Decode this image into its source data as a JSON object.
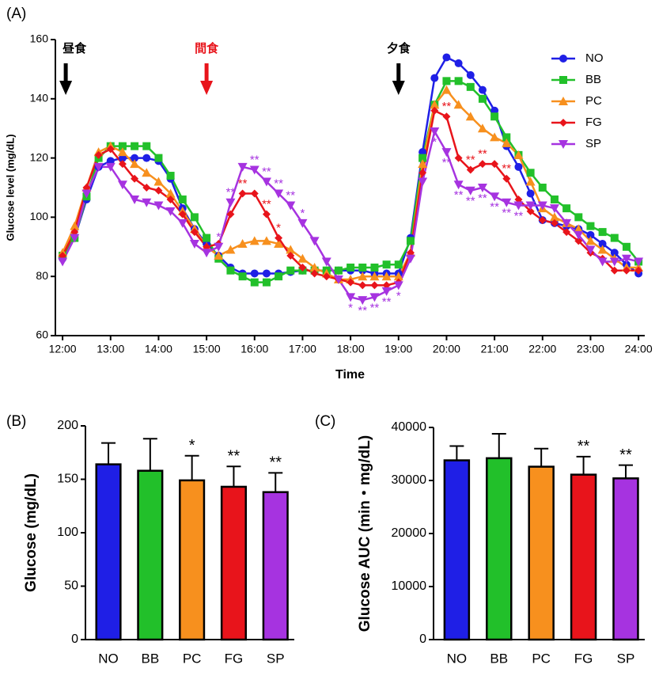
{
  "chart_data": [
    {
      "type": "line",
      "panel_label": "(A)",
      "x_label": "Time",
      "y_label": "Glucose level (mg/dL)",
      "x": [
        12,
        12.25,
        12.5,
        12.75,
        13,
        13.25,
        13.5,
        13.75,
        14,
        14.25,
        14.5,
        14.75,
        15,
        15.25,
        15.5,
        15.75,
        16,
        16.25,
        16.5,
        16.75,
        17,
        17.25,
        17.5,
        17.75,
        18,
        18.25,
        18.5,
        18.75,
        19,
        19.25,
        19.5,
        19.75,
        20,
        20.25,
        20.5,
        20.75,
        21,
        21.25,
        21.5,
        21.75,
        22,
        22.25,
        22.5,
        22.75,
        23,
        23.25,
        23.5,
        23.75,
        24
      ],
      "xlim": [
        11.85,
        24.13
      ],
      "xticks": [
        {
          "value": 12,
          "label": "12:00"
        },
        {
          "value": 13,
          "label": "13:00"
        },
        {
          "value": 14,
          "label": "14:00"
        },
        {
          "value": 15,
          "label": "15:00"
        },
        {
          "value": 16,
          "label": "16:00"
        },
        {
          "value": 17,
          "label": "17:00"
        },
        {
          "value": 18,
          "label": "18:00"
        },
        {
          "value": 19,
          "label": "19:00"
        },
        {
          "value": 20,
          "label": "20:00"
        },
        {
          "value": 21,
          "label": "21:00"
        },
        {
          "value": 22,
          "label": "22:00"
        },
        {
          "value": 23,
          "label": "23:00"
        },
        {
          "value": 24,
          "label": "24:00"
        }
      ],
      "ylim": [
        60,
        160
      ],
      "yticks": [
        60,
        80,
        100,
        120,
        140,
        160
      ],
      "series": [
        {
          "name": "NO",
          "color": "#1f1fe6",
          "marker": "circle",
          "values": [
            86,
            93,
            106,
            117,
            119,
            120,
            120,
            120,
            119,
            113,
            103,
            96,
            91,
            87,
            83,
            81,
            81,
            81,
            81,
            81.5,
            82,
            82,
            82,
            82,
            82,
            82,
            81,
            81,
            81,
            93,
            122,
            147,
            154,
            152,
            148,
            143,
            136,
            124,
            117,
            108,
            99,
            98,
            97,
            96,
            94,
            91,
            88,
            84,
            81
          ]
        },
        {
          "name": "BB",
          "color": "#22c02a",
          "marker": "square",
          "values": [
            87,
            93,
            107,
            120,
            124,
            124,
            124,
            124,
            120,
            114,
            106,
            100,
            93,
            86,
            82,
            80,
            78,
            78,
            80,
            82,
            82,
            82,
            82,
            82,
            83,
            83,
            83,
            84,
            84,
            92,
            120,
            138,
            146,
            146,
            144,
            140,
            134,
            127,
            121,
            115,
            110,
            106,
            103,
            100,
            97,
            95,
            93,
            90,
            85
          ]
        },
        {
          "name": "PC",
          "color": "#f7901e",
          "marker": "triangle",
          "values": [
            88,
            97,
            110,
            122,
            124,
            122,
            118,
            115,
            112,
            108,
            102,
            96,
            90,
            87,
            89,
            91,
            92,
            92,
            91,
            89,
            86,
            83,
            81,
            79,
            79,
            80,
            80,
            80,
            80,
            88,
            118,
            138,
            143,
            138,
            134,
            130,
            127,
            125,
            121,
            112,
            103,
            100,
            98,
            96,
            92,
            89,
            86,
            83,
            83
          ]
        },
        {
          "name": "FG",
          "color": "#e8141b",
          "marker": "diamond",
          "values": [
            87,
            95,
            110,
            121,
            123,
            118,
            113,
            110,
            109,
            106,
            101,
            95,
            90,
            91,
            101,
            108,
            108,
            101,
            93,
            87,
            83,
            81,
            80,
            79,
            78,
            77,
            77,
            77,
            78,
            88,
            115,
            136,
            134,
            120,
            116,
            118,
            118,
            113,
            106,
            102,
            99,
            98,
            95,
            92,
            88,
            86,
            82,
            82,
            82
          ]
        },
        {
          "name": "SP",
          "color": "#a633e0",
          "marker": "triangle-down",
          "values": [
            85,
            93,
            108,
            117,
            117,
            111,
            106,
            105,
            104,
            102,
            98,
            91,
            88,
            90,
            105,
            117,
            116,
            112,
            108,
            104,
            98,
            92,
            85,
            79,
            73,
            72,
            73,
            75,
            77,
            86,
            112,
            129,
            122,
            111,
            109,
            110,
            107,
            105,
            104,
            104,
            104,
            103,
            98,
            94,
            89,
            85,
            85,
            86,
            85
          ]
        }
      ],
      "legend": "top-right",
      "events": [
        {
          "time": 12,
          "label": "昼食",
          "color": "#000000"
        },
        {
          "time": 15,
          "label": "間食",
          "color": "#e8141b"
        },
        {
          "time": 19,
          "label": "夕食",
          "color": "#000000"
        }
      ],
      "annotations": [
        {
          "text": "*",
          "series": "SP",
          "x": 15.25,
          "place": "above"
        },
        {
          "text": "**",
          "series": "SP",
          "x": 15.5,
          "place": "above"
        },
        {
          "text": "**",
          "series": "SP",
          "x": 16,
          "place": "above"
        },
        {
          "text": "**",
          "series": "SP",
          "x": 16.25,
          "place": "above"
        },
        {
          "text": "**",
          "series": "SP",
          "x": 16.5,
          "place": "above"
        },
        {
          "text": "**",
          "series": "SP",
          "x": 16.75,
          "place": "above"
        },
        {
          "text": "*",
          "series": "SP",
          "x": 17,
          "place": "above"
        },
        {
          "text": "**",
          "series": "FG",
          "x": 15.75,
          "place": "above"
        },
        {
          "text": "**",
          "series": "FG",
          "x": 16.25,
          "place": "above"
        },
        {
          "text": "*",
          "series": "FG",
          "x": 16.5,
          "place": "above"
        },
        {
          "text": "*",
          "series": "SP",
          "x": 18,
          "place": "below"
        },
        {
          "text": "**",
          "series": "SP",
          "x": 18.25,
          "place": "below"
        },
        {
          "text": "**",
          "series": "SP",
          "x": 18.5,
          "place": "below"
        },
        {
          "text": "**",
          "series": "SP",
          "x": 18.75,
          "place": "below"
        },
        {
          "text": "*",
          "series": "SP",
          "x": 19,
          "place": "below"
        },
        {
          "text": "**",
          "series": "FG",
          "x": 20,
          "place": "above"
        },
        {
          "text": "**",
          "series": "FG",
          "x": 20.5,
          "place": "above"
        },
        {
          "text": "**",
          "series": "FG",
          "x": 20.75,
          "place": "above"
        },
        {
          "text": "**",
          "series": "FG",
          "x": 21.25,
          "place": "above"
        },
        {
          "text": "*",
          "series": "SP",
          "x": 19.75,
          "place": "below"
        },
        {
          "text": "**",
          "series": "SP",
          "x": 20,
          "place": "below"
        },
        {
          "text": "**",
          "series": "SP",
          "x": 20.25,
          "place": "below"
        },
        {
          "text": "**",
          "series": "SP",
          "x": 20.5,
          "place": "below"
        },
        {
          "text": "**",
          "series": "SP",
          "x": 20.75,
          "place": "below"
        },
        {
          "text": "**",
          "series": "SP",
          "x": 21,
          "place": "below"
        },
        {
          "text": "**",
          "series": "SP",
          "x": 21.25,
          "place": "below"
        },
        {
          "text": "**",
          "series": "SP",
          "x": 21.5,
          "place": "below"
        }
      ]
    },
    {
      "type": "bar",
      "panel_label": "(B)",
      "y_label": "Glucose (mg/dL)",
      "categories": [
        "NO",
        "BB",
        "PC",
        "FG",
        "SP"
      ],
      "values": [
        164,
        158,
        149,
        143,
        138
      ],
      "errors": [
        20,
        30,
        23,
        19,
        18
      ],
      "colors": [
        "#1f1fe6",
        "#22c02a",
        "#f7901e",
        "#e8141b",
        "#a633e0"
      ],
      "significance": [
        null,
        null,
        "*",
        "**",
        "**"
      ],
      "ylim": [
        0,
        200
      ],
      "yticks": [
        0,
        50,
        100,
        150,
        200
      ]
    },
    {
      "type": "bar",
      "panel_label": "(C)",
      "y_label": "Glucose AUC (min・mg/dL)",
      "categories": [
        "NO",
        "BB",
        "PC",
        "FG",
        "SP"
      ],
      "values": [
        33800,
        34200,
        32600,
        31100,
        30400
      ],
      "errors": [
        2700,
        4600,
        3400,
        3400,
        2500
      ],
      "colors": [
        "#1f1fe6",
        "#22c02a",
        "#f7901e",
        "#e8141b",
        "#a633e0"
      ],
      "significance": [
        null,
        null,
        null,
        "**",
        "**"
      ],
      "ylim": [
        0,
        40000
      ],
      "yticks": [
        0,
        10000,
        20000,
        30000,
        40000
      ]
    }
  ]
}
